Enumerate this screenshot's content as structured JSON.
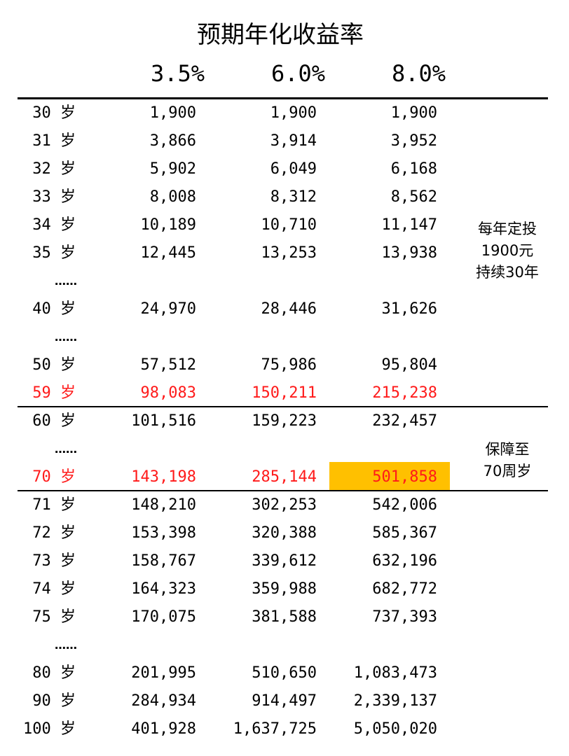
{
  "title": "预期年化收益率",
  "rates": [
    "3.5%",
    "6.0%",
    "8.0%"
  ],
  "rows": [
    {
      "age": "30 岁",
      "values": [
        "1,900",
        "1,900",
        "1,900"
      ]
    },
    {
      "age": "31 岁",
      "values": [
        "3,866",
        "3,914",
        "3,952"
      ]
    },
    {
      "age": "32 岁",
      "values": [
        "5,902",
        "6,049",
        "6,168"
      ]
    },
    {
      "age": "33 岁",
      "values": [
        "8,008",
        "8,312",
        "8,562"
      ]
    },
    {
      "age": "34 岁",
      "values": [
        "10,189",
        "10,710",
        "11,147"
      ]
    },
    {
      "age": "35 岁",
      "values": [
        "12,445",
        "13,253",
        "13,938"
      ]
    },
    {
      "ellipsis": "……"
    },
    {
      "age": "40 岁",
      "values": [
        "24,970",
        "28,446",
        "31,626"
      ]
    },
    {
      "ellipsis": "……"
    },
    {
      "age": "50 岁",
      "values": [
        "57,512",
        "75,986",
        "95,804"
      ]
    },
    {
      "age": "59 岁",
      "values": [
        "98,083",
        "150,211",
        "215,238"
      ],
      "highlight": "red"
    },
    {
      "age": "60 岁",
      "values": [
        "101,516",
        "159,223",
        "232,457"
      ]
    },
    {
      "ellipsis": "……"
    },
    {
      "age": "70 岁",
      "values": [
        "143,198",
        "285,144",
        "501,858"
      ],
      "highlight": "red"
    },
    {
      "age": "71 岁",
      "values": [
        "148,210",
        "302,253",
        "542,006"
      ]
    },
    {
      "age": "72 岁",
      "values": [
        "153,398",
        "320,388",
        "585,367"
      ]
    },
    {
      "age": "73 岁",
      "values": [
        "158,767",
        "339,612",
        "632,196"
      ]
    },
    {
      "age": "74 岁",
      "values": [
        "164,323",
        "359,988",
        "682,772"
      ]
    },
    {
      "age": "75 岁",
      "values": [
        "170,075",
        "381,588",
        "737,393"
      ]
    },
    {
      "ellipsis": "……"
    },
    {
      "age": "80 岁",
      "values": [
        "201,995",
        "510,650",
        "1,083,473"
      ]
    },
    {
      "age": "90 岁",
      "values": [
        "284,934",
        "914,497",
        "2,339,137"
      ]
    },
    {
      "age": "100 岁",
      "values": [
        "401,928",
        "1,637,725",
        "5,050,020"
      ]
    }
  ],
  "notes": {
    "plan": [
      "每年定投",
      "1900元",
      "持续30年"
    ],
    "coverage": [
      "保障至",
      "70周岁"
    ]
  },
  "colors": {
    "highlight_text": "#ff1a1a",
    "highlight_cell": "#ffc000",
    "text": "#000000"
  }
}
